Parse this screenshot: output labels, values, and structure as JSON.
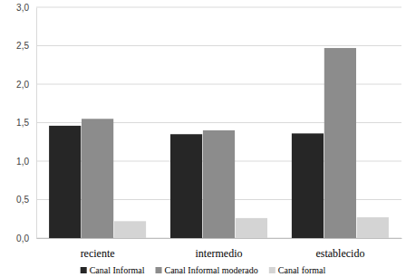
{
  "chart_data": {
    "type": "bar",
    "categories": [
      "reciente",
      "intermedio",
      "establecido"
    ],
    "series": [
      {
        "name": "Canal Informal",
        "color": "#262626",
        "values": [
          1.46,
          1.35,
          1.36
        ]
      },
      {
        "name": "Canal Informal moderado",
        "color": "#8c8c8c",
        "values": [
          1.55,
          1.4,
          2.47
        ]
      },
      {
        "name": "Canal formal",
        "color": "#d4d4d4",
        "values": [
          0.22,
          0.26,
          0.27
        ]
      }
    ],
    "ylim": [
      0,
      3
    ],
    "yticks": [
      {
        "value": 0,
        "label": "0,0"
      },
      {
        "value": 0.5,
        "label": "0,5"
      },
      {
        "value": 1,
        "label": "1,0"
      },
      {
        "value": 1.5,
        "label": "1,5"
      },
      {
        "value": 2,
        "label": "2,0"
      },
      {
        "value": 2.5,
        "label": "2,5"
      },
      {
        "value": 3,
        "label": "3,0"
      }
    ],
    "grid": true,
    "legend": "bottom"
  }
}
